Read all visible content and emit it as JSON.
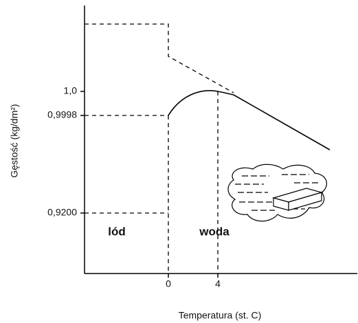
{
  "axes": {
    "y_title": "Gęstość (kg/dm²)",
    "x_title": "Temperatura (st. C)",
    "y_ticks": [
      "1,0",
      "0,9998",
      "0,9200"
    ],
    "x_ticks": [
      "0",
      "4"
    ]
  },
  "regions": [
    "lód",
    "woda"
  ]
}
